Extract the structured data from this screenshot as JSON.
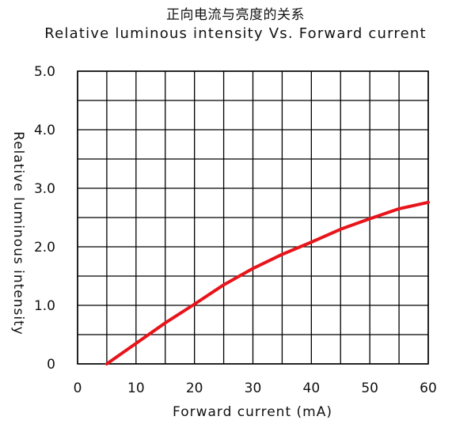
{
  "title_cn": "正向电流与亮度的关系",
  "title_en": "Relative luminous intensity Vs. Forward current",
  "chart_data": {
    "type": "line",
    "xlabel": "Forward current (mA)",
    "ylabel": "Relative luminous intensity",
    "xlim": [
      0,
      60
    ],
    "ylim": [
      0,
      5.0
    ],
    "x_ticks": [
      "0",
      "10",
      "20",
      "30",
      "40",
      "50",
      "60"
    ],
    "y_ticks": [
      "0",
      "1.0",
      "2.0",
      "3.0",
      "4.0",
      "5.0"
    ],
    "grid": true,
    "series": [
      {
        "color": "#e8141b",
        "x": [
          5,
          10,
          15,
          20,
          25,
          30,
          35,
          40,
          45,
          50,
          55,
          60
        ],
        "y": [
          0.0,
          0.35,
          0.7,
          1.02,
          1.35,
          1.63,
          1.87,
          2.08,
          2.3,
          2.48,
          2.65,
          2.76
        ]
      }
    ]
  }
}
